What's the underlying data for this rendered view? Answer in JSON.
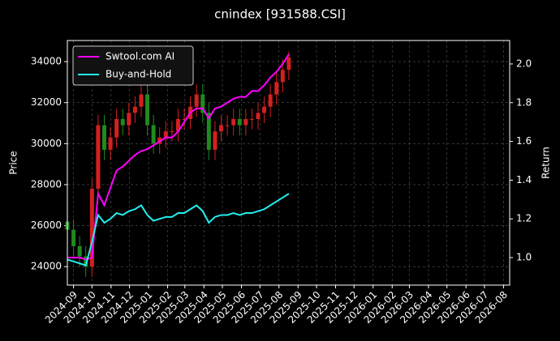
{
  "chart_data": {
    "type": "candlestick",
    "title": "cnindex [931588.CSI]",
    "ylabel": "Price",
    "y2label": "Return",
    "x": [
      "2024-08-22",
      "2024-09-01",
      "2024-09-11",
      "2024-09-21",
      "2024-10-01",
      "2024-10-11",
      "2024-10-21",
      "2024-10-31",
      "2024-11-10",
      "2024-11-20",
      "2024-11-30",
      "2024-12-10",
      "2024-12-20",
      "2024-12-30",
      "2025-01-09",
      "2025-01-19",
      "2025-01-29",
      "2025-02-08",
      "2025-02-18",
      "2025-02-28",
      "2025-03-10",
      "2025-03-20",
      "2025-03-30",
      "2025-04-09",
      "2025-04-19",
      "2025-04-29",
      "2025-05-09",
      "2025-05-19",
      "2025-05-29",
      "2025-06-08",
      "2025-06-18",
      "2025-06-28",
      "2025-07-08",
      "2025-07-18",
      "2025-07-28",
      "2025-08-07",
      "2025-08-17"
    ],
    "open": [
      26200,
      25800,
      25000,
      24500,
      24000,
      27800,
      30900,
      29700,
      30300,
      31200,
      30900,
      31500,
      31800,
      32400,
      30900,
      30000,
      30300,
      30600,
      30600,
      31200,
      31200,
      31800,
      32400,
      31500,
      29700,
      30600,
      30900,
      30900,
      31200,
      30900,
      31200,
      31200,
      31500,
      31800,
      32400,
      33000,
      33600
    ],
    "high": [
      26700,
      26300,
      25500,
      25000,
      28300,
      31400,
      31400,
      30800,
      31700,
      31700,
      32000,
      32300,
      32900,
      32900,
      31400,
      30800,
      31100,
      31100,
      31700,
      31700,
      32300,
      32900,
      32900,
      32000,
      31100,
      31400,
      31400,
      31700,
      31700,
      31700,
      31700,
      32000,
      32300,
      32900,
      33500,
      34100,
      34500
    ],
    "low": [
      25300,
      24500,
      24000,
      23500,
      23500,
      27300,
      29200,
      29200,
      29800,
      30400,
      30400,
      31000,
      31300,
      30400,
      29500,
      29500,
      29800,
      30100,
      30100,
      30700,
      30700,
      31300,
      31000,
      29200,
      29200,
      30100,
      30400,
      30400,
      30400,
      30400,
      30700,
      30700,
      31000,
      31300,
      31900,
      32500,
      33100
    ],
    "close": [
      25800,
      25000,
      24500,
      24000,
      27800,
      30900,
      29700,
      30300,
      31200,
      30900,
      31500,
      31800,
      32400,
      30900,
      30000,
      30300,
      30600,
      30600,
      31200,
      31200,
      31800,
      32400,
      31500,
      29700,
      30600,
      30900,
      30900,
      31200,
      30900,
      31200,
      31200,
      31500,
      31800,
      32400,
      33000,
      33600,
      34200
    ],
    "up_color": "#d42020",
    "down_color": "#1f8a1f",
    "lines": [
      {
        "name": "Swtool.com AI",
        "color": "#ff00ff",
        "axis": "y2",
        "values": [
          1.0,
          1.0,
          1.0,
          0.99,
          1.0,
          1.33,
          1.27,
          1.36,
          1.45,
          1.47,
          1.5,
          1.53,
          1.55,
          1.56,
          1.58,
          1.6,
          1.62,
          1.62,
          1.65,
          1.7,
          1.75,
          1.77,
          1.77,
          1.72,
          1.77,
          1.78,
          1.8,
          1.82,
          1.83,
          1.83,
          1.86,
          1.86,
          1.89,
          1.93,
          1.96,
          2.0,
          2.05
        ]
      },
      {
        "name": "Buy-and-Hold",
        "color": "#22eeee",
        "axis": "y2",
        "values": [
          0.99,
          0.98,
          0.97,
          0.96,
          1.08,
          1.22,
          1.18,
          1.2,
          1.23,
          1.22,
          1.24,
          1.25,
          1.27,
          1.22,
          1.19,
          1.2,
          1.21,
          1.21,
          1.23,
          1.23,
          1.25,
          1.27,
          1.24,
          1.18,
          1.21,
          1.22,
          1.22,
          1.23,
          1.22,
          1.23,
          1.23,
          1.24,
          1.25,
          1.27,
          1.29,
          1.31,
          1.33
        ]
      }
    ],
    "xlim": [
      "2024-08-22",
      "2026-08-11"
    ],
    "xticks": [
      "2024-09",
      "2024-10",
      "2024-11",
      "2024-12",
      "2025-01",
      "2025-02",
      "2025-03",
      "2025-04",
      "2025-05",
      "2025-06",
      "2025-07",
      "2025-08",
      "2025-09",
      "2025-10",
      "2025-11",
      "2025-12",
      "2026-01",
      "2026-02",
      "2026-03",
      "2026-04",
      "2026-05",
      "2026-06",
      "2026-07",
      "2026-08"
    ],
    "ylim": [
      23100,
      35030
    ],
    "yticks": [
      24000,
      26000,
      28000,
      30000,
      32000,
      34000
    ],
    "y2lim": [
      0.858,
      2.121
    ],
    "y2ticks": [
      {
        "value": 1,
        "label": "1.0"
      },
      1.2,
      1.4,
      1.6,
      1.8,
      {
        "value": 2,
        "label": "2.0"
      }
    ],
    "grid": true,
    "legend": "upper left"
  }
}
